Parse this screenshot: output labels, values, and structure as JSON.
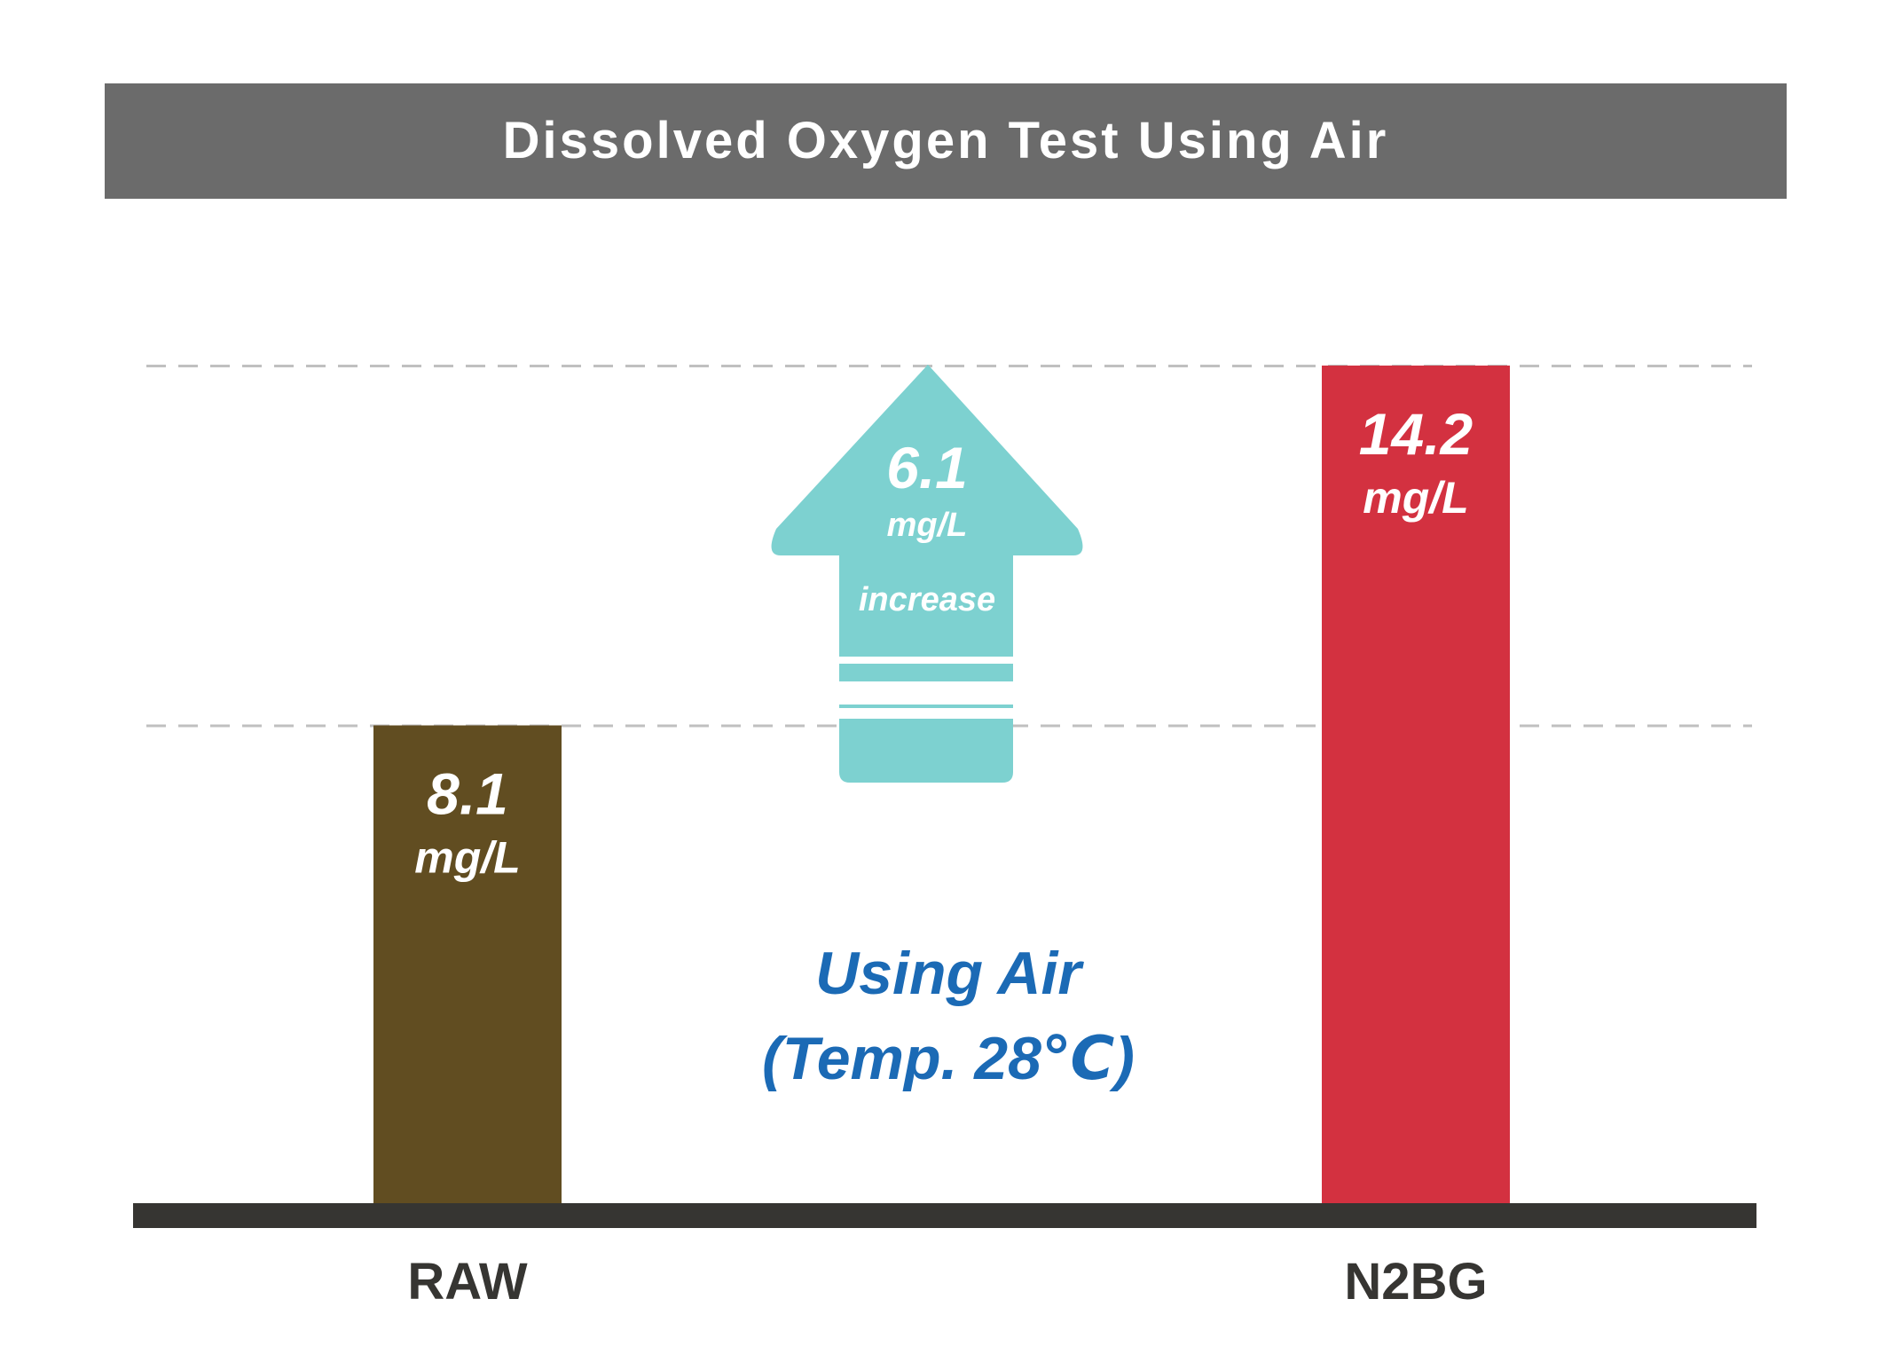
{
  "chart_data": {
    "type": "bar",
    "title": "Dissolved Oxygen Test Using Air",
    "categories": [
      "RAW",
      "N2BG"
    ],
    "values": [
      8.1,
      14.2
    ],
    "value_labels": [
      "8.1",
      "14.2"
    ],
    "unit": "mg/L",
    "bar_colors": [
      "#614d21",
      "#d33140"
    ],
    "annotation": {
      "difference_value": "6.1",
      "difference_unit": "mg/L",
      "difference_word": "increase",
      "arrow_color": "#7dd1d0",
      "condition_line1": "Using Air",
      "condition_line2": "(Temp. 28℃)",
      "condition_color": "#1b6ab5"
    },
    "grid": "dashed",
    "title_bar_color": "#6b6b6b",
    "axis_color": "#363532",
    "category_label_color": "#363532"
  }
}
